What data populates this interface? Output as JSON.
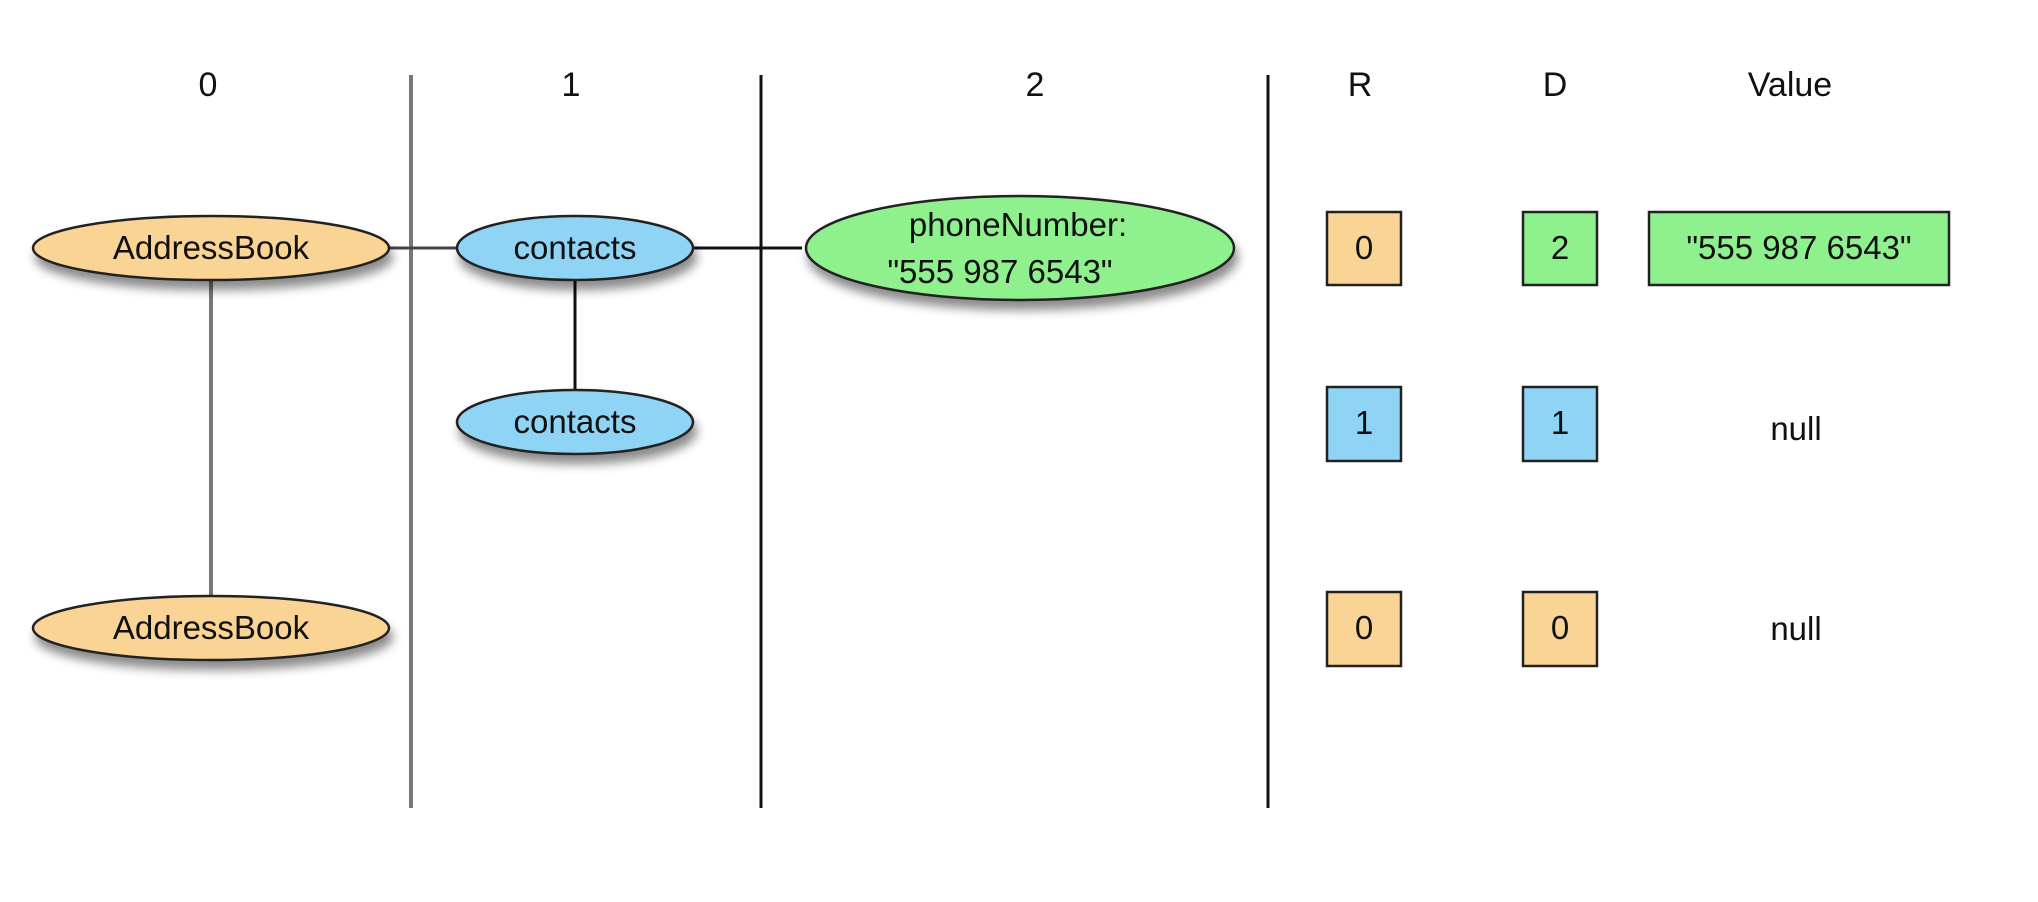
{
  "colors": {
    "level0": "#f9d494",
    "level1": "#8fd3f5",
    "level2": "#8ff08e",
    "stroke": "#222222",
    "divider_gray": "#777777",
    "divider_black": "#111111"
  },
  "headers": {
    "col0": "0",
    "col1": "1",
    "col2": "2",
    "r": "R",
    "d": "D",
    "value": "Value"
  },
  "tree": {
    "record1_root": "AddressBook",
    "contacts_a": "contacts",
    "contacts_b": "contacts",
    "phone_line1": "phoneNumber:",
    "phone_line2": "\"555 987 6543\"",
    "record2_root": "AddressBook"
  },
  "rows": [
    {
      "r": "0",
      "d": "2",
      "value": "\"555 987 6543\""
    },
    {
      "r": "1",
      "d": "1",
      "value": "null"
    },
    {
      "r": "0",
      "d": "0",
      "value": "null"
    }
  ]
}
